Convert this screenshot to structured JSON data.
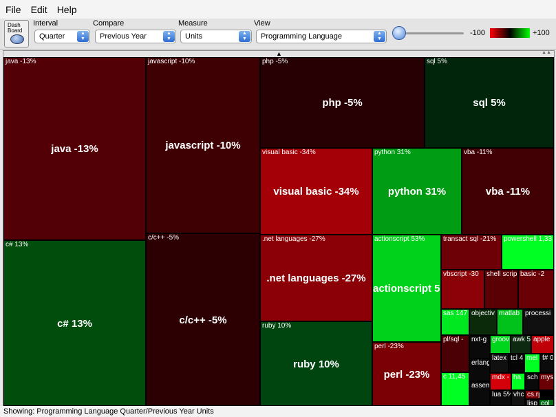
{
  "menu": [
    "File",
    "Edit",
    "Help"
  ],
  "toolbar": {
    "dash": "Dash\nBoard",
    "interval_label": "Interval",
    "interval_value": "Quarter",
    "compare_label": "Compare",
    "compare_value": "Previous Year",
    "measure_label": "Measure",
    "measure_value": "Units",
    "view_label": "View",
    "view_value": "Programming Language",
    "legend_low": "-100",
    "legend_high": "+100"
  },
  "treemap": [
    {
      "name": "java",
      "change": -13,
      "label": "java -13%",
      "color": "#520006"
    },
    {
      "name": "c#",
      "change": 13,
      "label": "c# 13%",
      "color": "#004d0c"
    },
    {
      "name": "javascript",
      "change": -10,
      "label": "javascript -10%",
      "color": "#3f0004"
    },
    {
      "name": "c/c++",
      "change": -5,
      "label": "c/c++ -5%",
      "color": "#2c0002"
    },
    {
      "name": "php",
      "change": -5,
      "label": "php -5%",
      "color": "#260002"
    },
    {
      "name": "sql",
      "change": 5,
      "label": "sql 5%",
      "color": "#00250a"
    },
    {
      "name": "visual basic",
      "change": -34,
      "label": "visual basic -34%",
      "color": "#a30008"
    },
    {
      "name": "python",
      "change": 31,
      "label": "python 31%",
      "color": "#009c14"
    },
    {
      "name": "vba",
      "change": -11,
      "label": "vba -11%",
      "color": "#400004"
    },
    {
      "name": ".net languages",
      "change": -27,
      "label": ".net languages -27%",
      "color": "#8a0006"
    },
    {
      "name": "ruby",
      "change": 10,
      "label": "ruby 10%",
      "color": "#004510"
    },
    {
      "name": "actionscript",
      "change": 53,
      "label": "actionscript 53%",
      "color": "#00d21b"
    },
    {
      "name": "perl",
      "change": -23,
      "label": "perl -23%",
      "color": "#7a0006"
    },
    {
      "name": "transact sql",
      "change": -21,
      "label": "transact sql -21%",
      "color": "#6d0006"
    },
    {
      "name": "powershell",
      "label": "powershell 1,33",
      "color": "#00ff22"
    },
    {
      "name": "vbscript",
      "label": "vbscript -30",
      "color": "#8c0007"
    },
    {
      "name": "shell script",
      "label": "shell scrip",
      "color": "#5a0005"
    },
    {
      "name": "basic",
      "label": "basic -2",
      "color": "#6a0006"
    },
    {
      "name": "sas",
      "label": "sas 147",
      "color": "#00e81f"
    },
    {
      "name": "objective",
      "label": "objectiv",
      "color": "#0a2a0a"
    },
    {
      "name": "matlab",
      "label": "matlab",
      "color": "#00c21a"
    },
    {
      "name": "processing",
      "label": "processi",
      "color": "#101010"
    },
    {
      "name": "pl/sql",
      "label": "pl/sql -",
      "color": "#4a0004"
    },
    {
      "name": "nxt-g",
      "label": "nxt-g",
      "color": "#0a0a0a"
    },
    {
      "name": "groovy",
      "label": "groov",
      "color": "#00d61c"
    },
    {
      "name": "awk",
      "label": "awk 5",
      "color": "#0d2a10"
    },
    {
      "name": "apple",
      "label": "apple",
      "color": "#c00009"
    },
    {
      "name": "erlang",
      "label": "erlang",
      "color": "#0a0a0a"
    },
    {
      "name": "latex",
      "label": "latex 4",
      "color": "#101010"
    },
    {
      "name": "tcl",
      "label": "tcl 4",
      "color": "#050505"
    },
    {
      "name": "mel",
      "label": "mel",
      "color": "#00ff22"
    },
    {
      "name": "f#",
      "label": "f# 0",
      "color": "#0b0b0b"
    },
    {
      "name": "c",
      "label": "c 11,45",
      "color": "#00ff22"
    },
    {
      "name": "mdx",
      "label": "mdx -",
      "color": "#d4000a"
    },
    {
      "name": "hal",
      "label": "ha",
      "color": "#00ff22"
    },
    {
      "name": "scheme",
      "label": "schem",
      "color": "#0a0a0a"
    },
    {
      "name": "mysql",
      "label": "mys",
      "color": "#6a0006"
    },
    {
      "name": "assembly",
      "label": "assem",
      "color": "#0a0a0a"
    },
    {
      "name": "vhdl",
      "label": "vhc",
      "color": "#111111"
    },
    {
      "name": "cs",
      "label": "cs.rp",
      "color": "#7a0007"
    },
    {
      "name": "lua",
      "label": "lua 5%",
      "color": "#0a0a0a"
    },
    {
      "name": "lisp",
      "label": "lisp",
      "color": "#111111"
    },
    {
      "name": "col",
      "label": "col",
      "color": "#006a12"
    }
  ],
  "status": "Showing: Programming Language Quarter/Previous Year Units"
}
